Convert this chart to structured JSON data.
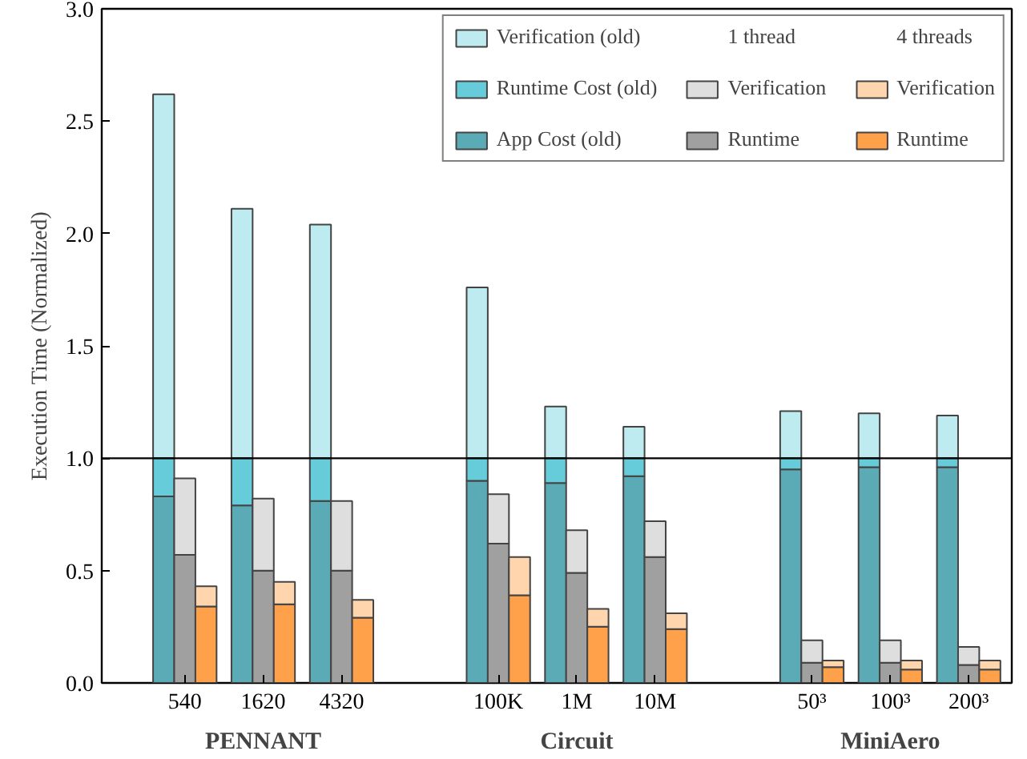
{
  "chart_data": {
    "type": "bar",
    "ylabel": "Execution Time (Normalized)",
    "categories": [
      "540",
      "1620",
      "4320",
      null,
      "100K",
      "1M",
      "10M",
      null,
      "50³",
      "100³",
      "200³"
    ],
    "ylim": [
      0,
      3
    ],
    "yticks": [
      {
        "value": 0,
        "label": "0.0"
      },
      {
        "value": 0.5,
        "label": "0.5"
      },
      {
        "value": 1,
        "label": "1.0"
      },
      {
        "value": 1.5,
        "label": "1.5"
      },
      {
        "value": 2,
        "label": "2.0"
      },
      {
        "value": 2.5,
        "label": "2.5"
      },
      {
        "value": 3,
        "label": "3.0"
      }
    ],
    "grid": false,
    "legend": "top right",
    "ref_lines": [
      {
        "axis": "y",
        "value": 1,
        "label": null,
        "color": "#000000"
      }
    ],
    "annotations": [
      "1 thread",
      "4 threads",
      "PENNANT",
      "Circuit",
      "MiniAero"
    ],
    "series": [
      {
        "name": "App Cost (old)",
        "color": "#5aabb5",
        "base": [
          0,
          0,
          0,
          null,
          0,
          0,
          0,
          null,
          0,
          0,
          0
        ],
        "values": [
          0.83,
          0.79,
          0.81,
          null,
          0.9,
          0.89,
          0.92,
          null,
          0.95,
          0.96,
          0.96
        ]
      },
      {
        "name": "Runtime Cost (old)",
        "color": "#66ccd9",
        "base": [
          0.83,
          0.79,
          0.81,
          null,
          0.9,
          0.89,
          0.92,
          null,
          0.95,
          0.96,
          0.96
        ],
        "values": [
          0.17,
          0.21,
          0.19,
          null,
          0.1,
          0.11,
          0.08,
          null,
          0.05,
          0.04,
          0.04
        ]
      },
      {
        "name": "Verification (old)",
        "color": "#bdebf0",
        "base": [
          1,
          1,
          1,
          null,
          1,
          1,
          1,
          null,
          1,
          1,
          1
        ],
        "values": [
          1.62,
          1.11,
          1.04,
          null,
          0.76,
          0.23,
          0.14,
          null,
          0.21,
          0.2,
          0.19
        ]
      },
      {
        "name": "Runtime",
        "color": "#a0a0a0",
        "base": [
          0,
          0,
          0,
          null,
          0,
          0,
          0,
          null,
          0,
          0,
          0
        ],
        "values": [
          0.57,
          0.5,
          0.5,
          null,
          0.62,
          0.49,
          0.56,
          null,
          0.09,
          0.09,
          0.08
        ]
      },
      {
        "name": "Verification",
        "color": "#dedede",
        "base": [
          0.57,
          0.5,
          0.5,
          null,
          0.62,
          0.49,
          0.56,
          null,
          0.09,
          0.09,
          0.08
        ],
        "values": [
          0.34,
          0.32,
          0.31,
          null,
          0.22,
          0.19,
          0.16,
          null,
          0.1,
          0.1,
          0.08
        ]
      },
      {
        "name": "Runtime",
        "color": "#ffa04a",
        "base": [
          0,
          0,
          0,
          null,
          0,
          0,
          0,
          null,
          0,
          0,
          0
        ],
        "values": [
          0.34,
          0.35,
          0.29,
          null,
          0.39,
          0.25,
          0.24,
          null,
          0.07,
          0.06,
          0.06
        ]
      },
      {
        "name": "Verification",
        "color": "#ffd5ad",
        "base": [
          0.34,
          0.35,
          0.29,
          null,
          0.39,
          0.25,
          0.24,
          null,
          0.07,
          0.06,
          0.06
        ],
        "values": [
          0.09,
          0.1,
          0.08,
          null,
          0.17,
          0.08,
          0.07,
          null,
          0.03,
          0.04,
          0.04
        ]
      }
    ]
  }
}
